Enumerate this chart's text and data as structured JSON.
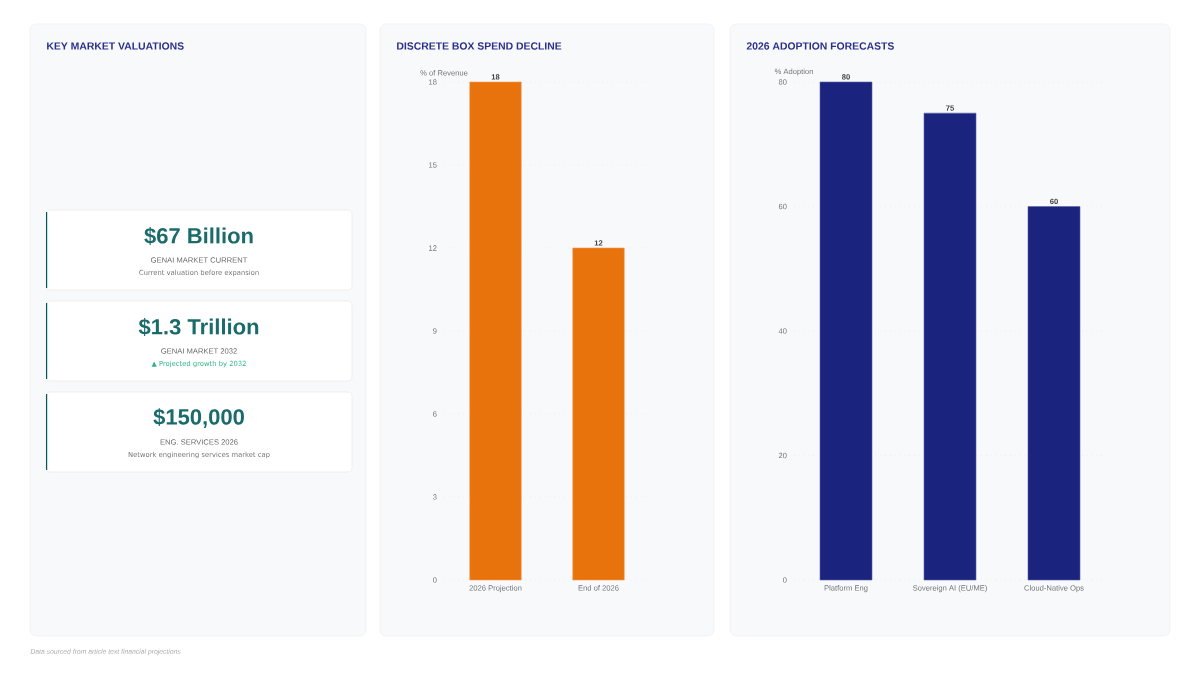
{
  "chart_data": [
    {
      "type": "other",
      "title": "KEY MARKET VALUATIONS",
      "annotations": [
        "$67 Billion",
        "GENAI MARKET CURRENT",
        "Current valuation before expansion",
        "$1.3 Trillion",
        "GENAI MARKET 2032",
        "▲ Projected growth by 2032",
        "$150,000",
        "ENG. SERVICES 2026",
        "Network engineering services market cap",
        "Data sourced from article text financial projections"
      ]
    },
    {
      "type": "bar",
      "title": "DISCRETE BOX SPEND DECLINE",
      "ylabel": "% of Revenue",
      "categories": [
        "2026 Projection",
        "End of 2026"
      ],
      "values": [
        18,
        12
      ],
      "color": "#e8720c",
      "ylim": [
        0,
        18
      ],
      "yticks": [
        0,
        3,
        6,
        9,
        12,
        15,
        18
      ],
      "grid": "y",
      "data_labels": true
    },
    {
      "type": "bar",
      "title": "2026 ADOPTION FORECASTS",
      "ylabel": "% Adoption",
      "categories": [
        "Platform Eng",
        "Sovereign AI (EU/ME)",
        "Cloud-Native Ops"
      ],
      "values": [
        80,
        75,
        60
      ],
      "color": "#1a237e",
      "ylim": [
        0,
        80
      ],
      "yticks": [
        0,
        20,
        40,
        60,
        80
      ],
      "grid": "y",
      "data_labels": true
    }
  ]
}
